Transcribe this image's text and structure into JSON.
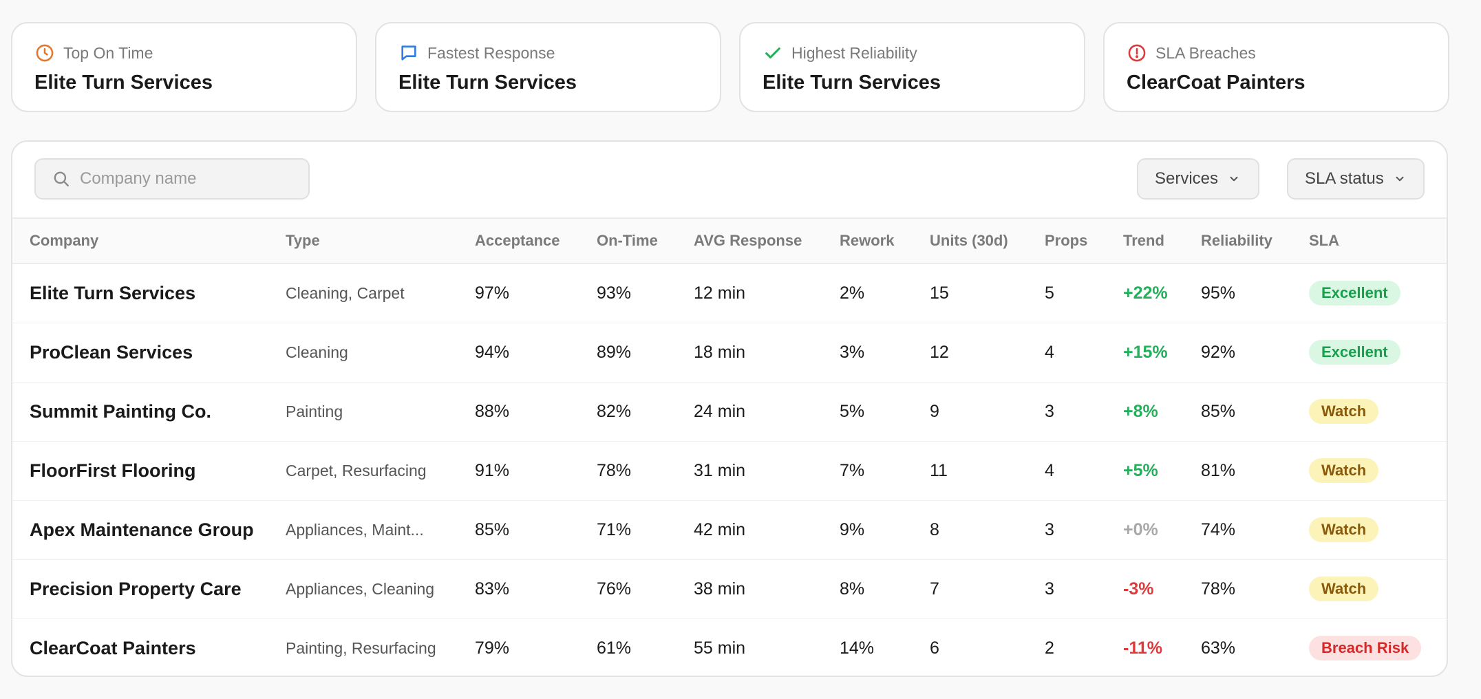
{
  "summary_cards": [
    {
      "label": "Top On Time",
      "value": "Elite Turn Services",
      "icon": "clock-icon",
      "color": "#e0782f"
    },
    {
      "label": "Fastest Response",
      "value": "Elite Turn Services",
      "icon": "chat-bubble-icon",
      "color": "#2f7be0"
    },
    {
      "label": "Highest Reliability",
      "value": "Elite Turn Services",
      "icon": "check-icon",
      "color": "#22b05a"
    },
    {
      "label": "SLA Breaches",
      "value": "ClearCoat Painters",
      "icon": "alert-circle-icon",
      "color": "#e0393b"
    }
  ],
  "toolbar": {
    "search_placeholder": "Company name",
    "services_label": "Services",
    "sla_status_label": "SLA status"
  },
  "table": {
    "columns": [
      "Company",
      "Type",
      "Acceptance",
      "On-Time",
      "AVG Response",
      "Rework",
      "Units (30d)",
      "Props",
      "Trend",
      "Reliability",
      "SLA"
    ],
    "rows": [
      {
        "company": "Elite Turn Services",
        "type": "Cleaning, Carpet",
        "acceptance": "97%",
        "on_time": "93%",
        "avg_response": "12 min",
        "rework": "2%",
        "units": "15",
        "props": "5",
        "trend": "+22%",
        "trend_dir": "pos",
        "reliability": "95%",
        "sla": "Excellent",
        "sla_kind": "excellent"
      },
      {
        "company": "ProClean Services",
        "type": "Cleaning",
        "acceptance": "94%",
        "on_time": "89%",
        "avg_response": "18 min",
        "rework": "3%",
        "units": "12",
        "props": "4",
        "trend": "+15%",
        "trend_dir": "pos",
        "reliability": "92%",
        "sla": "Excellent",
        "sla_kind": "excellent"
      },
      {
        "company": "Summit Painting Co.",
        "type": "Painting",
        "acceptance": "88%",
        "on_time": "82%",
        "avg_response": "24 min",
        "rework": "5%",
        "units": "9",
        "props": "3",
        "trend": "+8%",
        "trend_dir": "pos",
        "reliability": "85%",
        "sla": "Watch",
        "sla_kind": "watch"
      },
      {
        "company": "FloorFirst Flooring",
        "type": "Carpet, Resurfacing",
        "acceptance": "91%",
        "on_time": "78%",
        "avg_response": "31 min",
        "rework": "7%",
        "units": "11",
        "props": "4",
        "trend": "+5%",
        "trend_dir": "pos",
        "reliability": "81%",
        "sla": "Watch",
        "sla_kind": "watch"
      },
      {
        "company": "Apex Maintenance Group",
        "type": "Appliances, Maint...",
        "acceptance": "85%",
        "on_time": "71%",
        "avg_response": "42 min",
        "rework": "9%",
        "units": "8",
        "props": "3",
        "trend": "+0%",
        "trend_dir": "zero",
        "reliability": "74%",
        "sla": "Watch",
        "sla_kind": "watch"
      },
      {
        "company": "Precision Property Care",
        "type": "Appliances, Cleaning",
        "acceptance": "83%",
        "on_time": "76%",
        "avg_response": "38 min",
        "rework": "8%",
        "units": "7",
        "props": "3",
        "trend": "-3%",
        "trend_dir": "neg",
        "reliability": "78%",
        "sla": "Watch",
        "sla_kind": "watch"
      },
      {
        "company": "ClearCoat Painters",
        "type": "Painting, Resurfacing",
        "acceptance": "79%",
        "on_time": "61%",
        "avg_response": "55 min",
        "rework": "14%",
        "units": "6",
        "props": "2",
        "trend": "-11%",
        "trend_dir": "neg",
        "reliability": "63%",
        "sla": "Breach Risk",
        "sla_kind": "breach"
      }
    ]
  }
}
